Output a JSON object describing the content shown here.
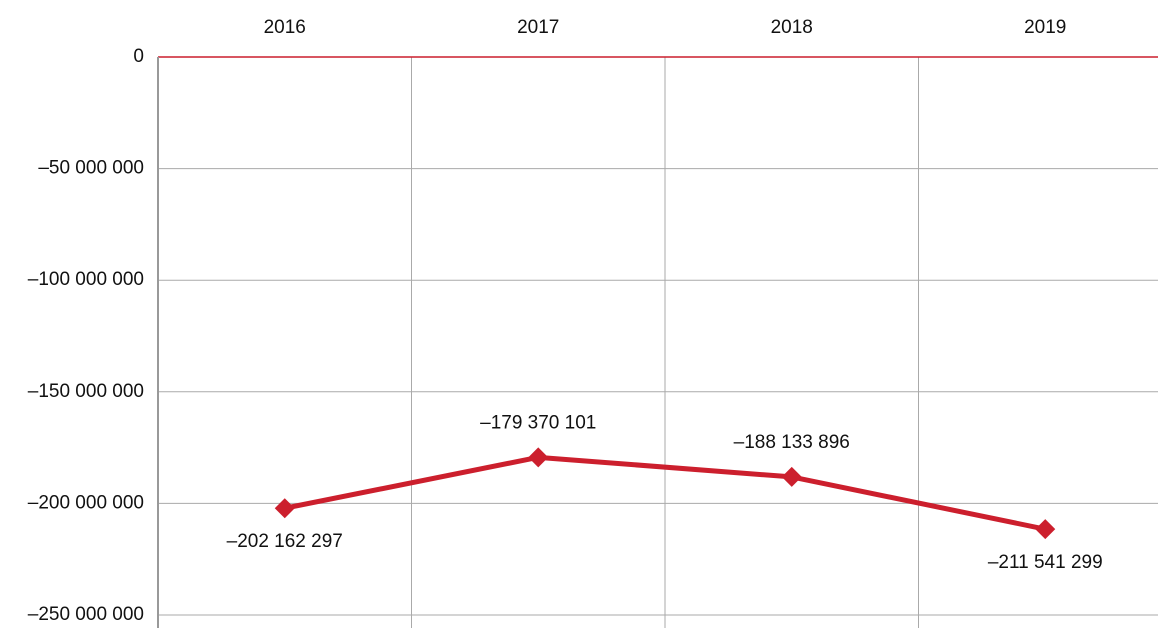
{
  "chart_data": {
    "type": "line",
    "categories": [
      "2016",
      "2017",
      "2018",
      "2019"
    ],
    "series": [
      {
        "name": null,
        "color": "#cc1f2d",
        "values": [
          -202162297,
          -179370101,
          -188133896,
          -211541299
        ],
        "value_labels": [
          "–202 162 297",
          "–179 370 101",
          "–188 133 896",
          "–211 541 299"
        ]
      }
    ],
    "ylim": [
      -250000000,
      0
    ],
    "yticks": [
      0,
      {
        "value": -50000000,
        "label": "–50 000 000"
      },
      {
        "value": -100000000,
        "label": "–100 000 000"
      },
      {
        "value": -150000000,
        "label": "–150 000 000"
      },
      {
        "value": -200000000,
        "label": "–200 000 000"
      },
      {
        "value": -250000000,
        "label": "–250 000 000"
      }
    ],
    "grid": true
  }
}
